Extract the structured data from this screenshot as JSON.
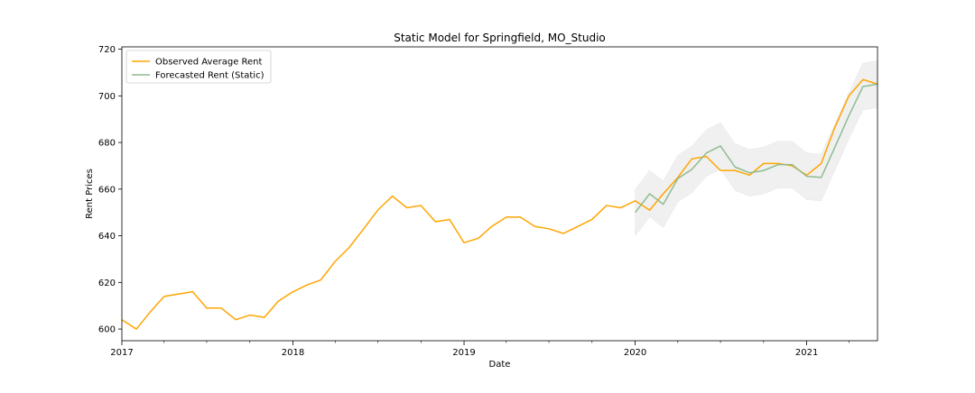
{
  "chart_data": {
    "type": "line",
    "title": "Static Model for Springfield, MO_Studio",
    "xlabel": "Date",
    "ylabel": "Rent Prices",
    "xlim": [
      "2017-01-01",
      "2021-06-01"
    ],
    "ylim": [
      595,
      721
    ],
    "x_ticks": [
      "2017-01-01",
      "2018-01-01",
      "2019-01-01",
      "2020-01-01",
      "2021-01-01"
    ],
    "x_tick_labels": [
      "2017",
      "2018",
      "2019",
      "2020",
      "2021"
    ],
    "y_ticks": [
      600,
      620,
      640,
      660,
      680,
      700,
      720
    ],
    "y_tick_labels": [
      "600",
      "620",
      "640",
      "660",
      "680",
      "700",
      "720"
    ],
    "legend_position": "top-left",
    "grid": false,
    "series": [
      {
        "name": "Observed Average Rent",
        "color": "#FFA500",
        "points": [
          [
            "2017-01-01",
            604
          ],
          [
            "2017-02-01",
            600
          ],
          [
            "2017-03-01",
            607
          ],
          [
            "2017-04-01",
            614
          ],
          [
            "2017-05-01",
            615
          ],
          [
            "2017-06-01",
            616
          ],
          [
            "2017-07-01",
            609
          ],
          [
            "2017-08-01",
            609
          ],
          [
            "2017-09-01",
            604
          ],
          [
            "2017-10-01",
            606
          ],
          [
            "2017-11-01",
            605
          ],
          [
            "2017-12-01",
            612
          ],
          [
            "2018-01-01",
            616
          ],
          [
            "2018-02-01",
            619
          ],
          [
            "2018-03-01",
            621
          ],
          [
            "2018-04-01",
            629
          ],
          [
            "2018-05-01",
            635
          ],
          [
            "2018-06-01",
            643
          ],
          [
            "2018-07-01",
            651
          ],
          [
            "2018-08-01",
            657
          ],
          [
            "2018-09-01",
            652
          ],
          [
            "2018-10-01",
            653
          ],
          [
            "2018-11-01",
            646
          ],
          [
            "2018-12-01",
            647
          ],
          [
            "2019-01-01",
            637
          ],
          [
            "2019-02-01",
            639
          ],
          [
            "2019-03-01",
            644
          ],
          [
            "2019-04-01",
            648
          ],
          [
            "2019-05-01",
            648
          ],
          [
            "2019-06-01",
            644
          ],
          [
            "2019-07-01",
            643
          ],
          [
            "2019-08-01",
            641
          ],
          [
            "2019-09-01",
            644
          ],
          [
            "2019-10-01",
            647
          ],
          [
            "2019-11-01",
            653
          ],
          [
            "2019-12-01",
            652
          ],
          [
            "2020-01-01",
            655
          ],
          [
            "2020-02-01",
            651
          ],
          [
            "2020-03-01",
            658
          ],
          [
            "2020-04-01",
            665
          ],
          [
            "2020-05-01",
            673
          ],
          [
            "2020-06-01",
            674
          ],
          [
            "2020-07-01",
            668
          ],
          [
            "2020-08-01",
            668
          ],
          [
            "2020-09-01",
            666
          ],
          [
            "2020-10-01",
            671
          ],
          [
            "2020-11-01",
            671
          ],
          [
            "2020-12-01",
            670
          ],
          [
            "2021-01-01",
            666
          ],
          [
            "2021-02-01",
            671
          ],
          [
            "2021-03-01",
            686
          ],
          [
            "2021-04-01",
            700
          ],
          [
            "2021-05-01",
            707
          ],
          [
            "2021-06-01",
            705
          ]
        ]
      },
      {
        "name": "Forecasted Rent (Static)",
        "color": "#8FBC8F",
        "points": [
          [
            "2020-01-01",
            650
          ],
          [
            "2020-02-01",
            658
          ],
          [
            "2020-03-01",
            653.5
          ],
          [
            "2020-04-01",
            664.5
          ],
          [
            "2020-05-01",
            668.5
          ],
          [
            "2020-06-01",
            675.5
          ],
          [
            "2020-07-01",
            678.5
          ],
          [
            "2020-08-01",
            669.5
          ],
          [
            "2020-09-01",
            667
          ],
          [
            "2020-10-01",
            668
          ],
          [
            "2020-11-01",
            670.5
          ],
          [
            "2020-12-01",
            670.5
          ],
          [
            "2021-01-01",
            665.5
          ],
          [
            "2021-02-01",
            665
          ],
          [
            "2021-03-01",
            677.5
          ],
          [
            "2021-04-01",
            691.5
          ],
          [
            "2021-05-01",
            704
          ],
          [
            "2021-06-01",
            705
          ]
        ]
      }
    ],
    "confidence_band": {
      "color": "#D3D3D3",
      "lower": [
        640,
        648,
        643.5,
        654.5,
        658.5,
        665.5,
        668.5,
        659.5,
        657,
        658,
        660.5,
        660.5,
        655.5,
        655,
        667.5,
        681.5,
        694,
        695
      ],
      "upper": [
        660,
        668,
        663.5,
        674.5,
        678.5,
        685.5,
        688.5,
        679.5,
        677,
        678,
        680.5,
        680.5,
        675.5,
        675,
        687.5,
        701.5,
        714,
        715
      ]
    }
  }
}
